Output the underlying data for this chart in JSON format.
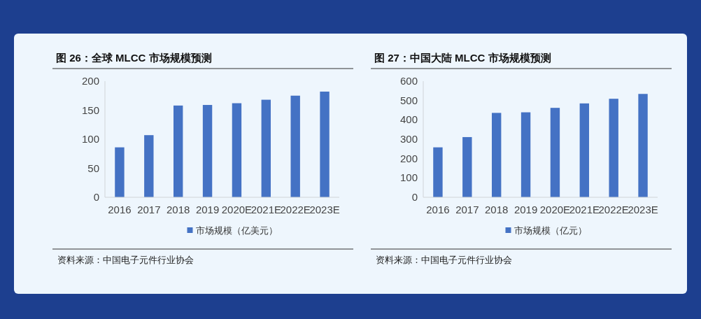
{
  "chart_data": [
    {
      "type": "bar",
      "title": "图 26：全球 MLCC 市场规模预测",
      "categories": [
        "2016",
        "2017",
        "2018",
        "2019",
        "2020E",
        "2021E",
        "2022E",
        "2023E"
      ],
      "series": [
        {
          "name": "市场规模（亿美元）",
          "color": "#4472c4",
          "values": [
            86,
            107,
            158,
            159,
            162,
            168,
            175,
            182
          ]
        }
      ],
      "ylim": [
        0,
        200
      ],
      "yticks": [
        0,
        50,
        100,
        150,
        200
      ],
      "grid": false,
      "legend": "bottom",
      "annotations": [
        "资料来源：中国电子元件行业协会"
      ]
    },
    {
      "type": "bar",
      "title": "图 27：中国大陆 MLCC 市场规模预测",
      "categories": [
        "2016",
        "2017",
        "2018",
        "2019",
        "2020E",
        "2021E",
        "2022E",
        "2023E"
      ],
      "series": [
        {
          "name": "市场规模（亿元）",
          "color": "#4472c4",
          "values": [
            258,
            311,
            436,
            439,
            462,
            485,
            509,
            534
          ]
        }
      ],
      "ylim": [
        0,
        600
      ],
      "yticks": [
        0,
        100,
        200,
        300,
        400,
        500,
        600
      ],
      "grid": false,
      "legend": "bottom",
      "annotations": [
        "资料来源：中国电子元件行业协会"
      ]
    }
  ]
}
